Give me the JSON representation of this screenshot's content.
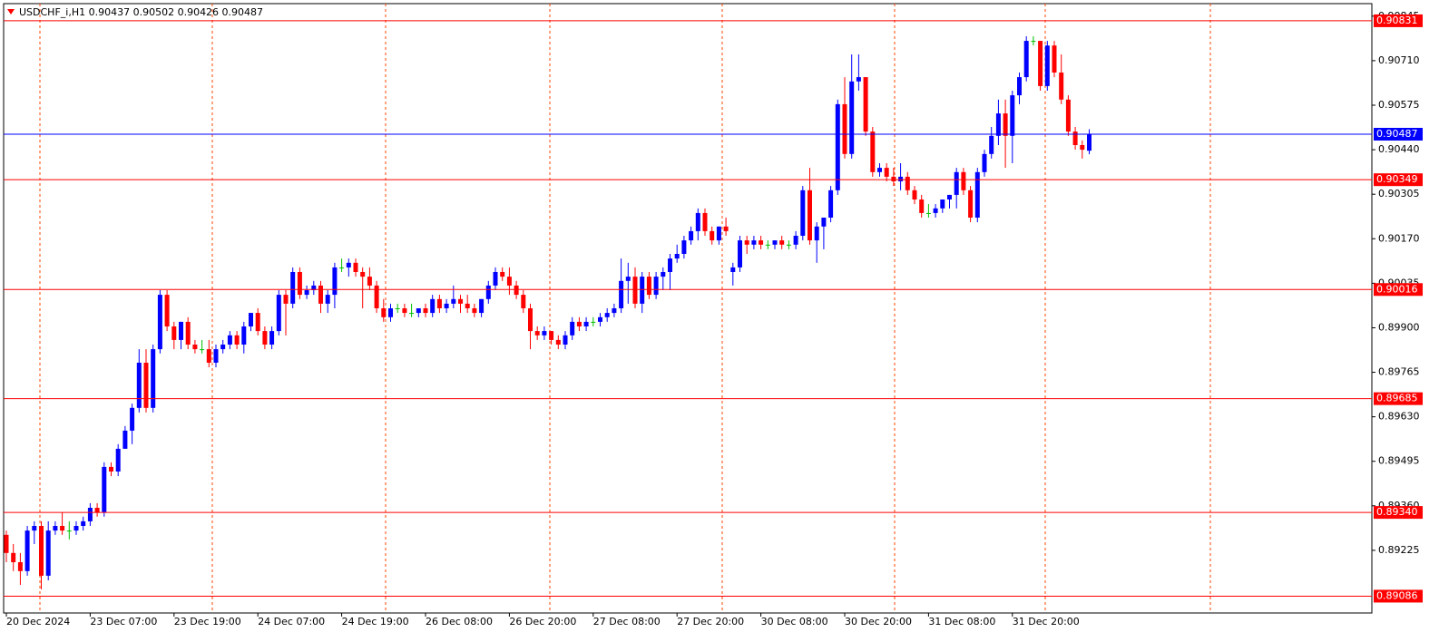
{
  "chart_data": {
    "type": "candlestick",
    "title": "USDCHF_i,H1  0.90437 0.90502 0.90426 0.90487",
    "bull_color": "#0000ff",
    "bear_color": "#ff0000",
    "doji_color": "#00c000",
    "ylim": [
      0.89035,
      0.90883
    ],
    "yticks": [
      0.90845,
      {
        "value": 0.9071,
        "label": "0.90710"
      },
      0.90575,
      {
        "value": 0.9044,
        "label": "0.90440"
      },
      0.90305,
      {
        "value": 0.9017,
        "label": "0.90170"
      },
      0.90035,
      {
        "value": 0.899,
        "label": "0.89900"
      },
      0.89765,
      {
        "value": 0.8963,
        "label": "0.89630"
      },
      0.89495,
      {
        "value": 0.8936,
        "label": "0.89360"
      },
      0.89225
    ],
    "levels": [
      0.90831,
      0.90349,
      0.90016,
      0.89685,
      {
        "value": 0.8934,
        "label": "0.89340"
      },
      0.89086
    ],
    "level_color": "#ff0000",
    "last_price": 0.90487,
    "last_price_color": "#0000ff",
    "categories": [
      "20 Dec 2024",
      null,
      null,
      null,
      null,
      null,
      null,
      null,
      null,
      null,
      null,
      null,
      "23 Dec 07:00",
      null,
      null,
      null,
      null,
      null,
      null,
      null,
      null,
      null,
      null,
      null,
      "23 Dec 19:00",
      null,
      null,
      null,
      null,
      null,
      null,
      null,
      null,
      null,
      null,
      null,
      "24 Dec 07:00",
      null,
      null,
      null,
      null,
      null,
      null,
      null,
      null,
      null,
      null,
      null,
      "24 Dec 19:00",
      null,
      null,
      null,
      null,
      null,
      null,
      null,
      null,
      null,
      null,
      null,
      "26 Dec 08:00",
      null,
      null,
      null,
      null,
      null,
      null,
      null,
      null,
      null,
      null,
      null,
      "26 Dec 20:00",
      null,
      null,
      null,
      null,
      null,
      null,
      null,
      null,
      null,
      null,
      null,
      "27 Dec 08:00",
      null,
      null,
      null,
      null,
      null,
      null,
      null,
      null,
      null,
      null,
      null,
      "27 Dec 20:00",
      null,
      null,
      null,
      null,
      null,
      null,
      null,
      null,
      null,
      null,
      null,
      "30 Dec 08:00",
      null,
      null,
      null,
      null,
      null,
      null,
      null,
      null,
      null,
      null,
      null,
      "30 Dec 20:00",
      null,
      null,
      null,
      null,
      null,
      null,
      null,
      null,
      null,
      null,
      null,
      "31 Dec 08:00",
      null,
      null,
      null,
      null,
      null,
      null,
      null,
      null,
      null,
      null,
      null,
      "31 Dec 20:00",
      null,
      null,
      null,
      null,
      null,
      null,
      null,
      null,
      null,
      null,
      null
    ],
    "candles": [
      [
        0.89272,
        0.89285,
        0.89189,
        0.89217
      ],
      [
        0.89217,
        0.89244,
        0.89162,
        0.89189
      ],
      [
        0.89189,
        0.89217,
        0.8912,
        0.89162
      ],
      [
        0.89162,
        0.89299,
        0.89148,
        0.89285
      ],
      [
        0.89285,
        0.89313,
        0.89244,
        0.89299
      ],
      [
        0.89299,
        0.89313,
        0.89107,
        0.89148
      ],
      [
        0.89148,
        0.89313,
        0.89134,
        0.89285
      ],
      [
        0.89285,
        0.89313,
        0.89272,
        0.89299
      ],
      [
        0.89299,
        0.8934,
        0.89272,
        0.89285
      ],
      [
        0.89285,
        0.89313,
        0.89258,
        0.89285
      ],
      [
        0.89285,
        0.89313,
        0.89272,
        0.89299
      ],
      [
        0.89299,
        0.89327,
        0.89285,
        0.89313
      ],
      [
        0.89313,
        0.89368,
        0.89299,
        0.89354
      ],
      [
        0.89354,
        0.89368,
        0.89327,
        0.8934
      ],
      [
        0.8934,
        0.89492,
        0.89327,
        0.89478
      ],
      [
        0.89478,
        0.89492,
        0.8945,
        0.89464
      ],
      [
        0.89464,
        0.89547,
        0.8945,
        0.89533
      ],
      [
        0.89533,
        0.89602,
        0.89533,
        0.89588
      ],
      [
        0.89588,
        0.8967,
        0.89547,
        0.89657
      ],
      [
        0.89657,
        0.89835,
        0.89643,
        0.89794
      ],
      [
        0.89794,
        0.89835,
        0.89643,
        0.89657
      ],
      [
        0.89657,
        0.89849,
        0.89643,
        0.89835
      ],
      [
        0.89835,
        0.90014,
        0.89822,
        0.9
      ],
      [
        0.9,
        0.90014,
        0.8989,
        0.89904
      ],
      [
        0.89904,
        0.89918,
        0.89835,
        0.89863
      ],
      [
        0.89863,
        0.89918,
        0.89835,
        0.89918
      ],
      [
        0.89918,
        0.89932,
        0.89835,
        0.89849
      ],
      [
        0.89849,
        0.89863,
        0.89822,
        0.89835
      ],
      [
        0.89835,
        0.89863,
        0.89822,
        0.89835
      ],
      [
        0.89835,
        0.89863,
        0.8978,
        0.89794
      ],
      [
        0.89794,
        0.89849,
        0.8978,
        0.89835
      ],
      [
        0.89835,
        0.89863,
        0.89822,
        0.89849
      ],
      [
        0.89849,
        0.8989,
        0.89835,
        0.89877
      ],
      [
        0.89877,
        0.8989,
        0.89835,
        0.89849
      ],
      [
        0.89849,
        0.89918,
        0.89822,
        0.89904
      ],
      [
        0.89904,
        0.89945,
        0.8989,
        0.89945
      ],
      [
        0.89945,
        0.89959,
        0.89877,
        0.8989
      ],
      [
        0.8989,
        0.89904,
        0.89835,
        0.89849
      ],
      [
        0.89849,
        0.89904,
        0.89835,
        0.8989
      ],
      [
        0.8989,
        0.90014,
        0.89877,
        0.9
      ],
      [
        0.9,
        0.90014,
        0.89877,
        0.89973
      ],
      [
        0.89973,
        0.90083,
        0.89959,
        0.90069
      ],
      [
        0.90069,
        0.90083,
        0.89987,
        0.9
      ],
      [
        0.9,
        0.90028,
        0.89987,
        0.90014
      ],
      [
        0.90014,
        0.90042,
        0.9,
        0.90028
      ],
      [
        0.90028,
        0.90042,
        0.89945,
        0.89973
      ],
      [
        0.89973,
        0.90014,
        0.89945,
        0.9
      ],
      [
        0.9,
        0.90097,
        0.89959,
        0.90083
      ],
      [
        0.90083,
        0.9011,
        0.90069,
        0.90083
      ],
      [
        0.90083,
        0.9011,
        0.90055,
        0.90097
      ],
      [
        0.90097,
        0.9011,
        0.90055,
        0.90069
      ],
      [
        0.90069,
        0.90083,
        0.89959,
        0.90055
      ],
      [
        0.90055,
        0.90083,
        0.90014,
        0.90028
      ],
      [
        0.90028,
        0.90042,
        0.89945,
        0.89959
      ],
      [
        0.89959,
        0.89987,
        0.89918,
        0.89932
      ],
      [
        0.89932,
        0.89973,
        0.89918,
        0.89959
      ],
      [
        0.89959,
        0.89973,
        0.89945,
        0.89959
      ],
      [
        0.89959,
        0.89973,
        0.89932,
        0.89945
      ],
      [
        0.89945,
        0.89973,
        0.89932,
        0.89945
      ],
      [
        0.89945,
        0.89959,
        0.89932,
        0.89959
      ],
      [
        0.89959,
        0.89973,
        0.89932,
        0.89945
      ],
      [
        0.89945,
        0.9,
        0.89932,
        0.89987
      ],
      [
        0.89987,
        0.9,
        0.89945,
        0.89959
      ],
      [
        0.89959,
        0.89987,
        0.89945,
        0.89973
      ],
      [
        0.89973,
        0.90028,
        0.89959,
        0.89987
      ],
      [
        0.89987,
        0.9,
        0.89945,
        0.89973
      ],
      [
        0.89973,
        0.9,
        0.89945,
        0.89959
      ],
      [
        0.89959,
        0.89973,
        0.89932,
        0.89945
      ],
      [
        0.89945,
        0.89987,
        0.89932,
        0.89987
      ],
      [
        0.89987,
        0.90042,
        0.89973,
        0.90028
      ],
      [
        0.90028,
        0.90083,
        0.90014,
        0.90069
      ],
      [
        0.90069,
        0.90083,
        0.90042,
        0.90055
      ],
      [
        0.90055,
        0.90083,
        0.9,
        0.90028
      ],
      [
        0.90028,
        0.90042,
        0.89987,
        0.9
      ],
      [
        0.9,
        0.90014,
        0.89945,
        0.89959
      ],
      [
        0.89959,
        0.89973,
        0.89835,
        0.8989
      ],
      [
        0.8989,
        0.89904,
        0.89863,
        0.89877
      ],
      [
        0.89877,
        0.89904,
        0.89863,
        0.8989
      ],
      [
        0.8989,
        0.8989,
        0.89849,
        0.89863
      ],
      [
        0.89863,
        0.89877,
        0.89835,
        0.89849
      ],
      [
        0.89849,
        0.8989,
        0.89835,
        0.89877
      ],
      [
        0.89877,
        0.89932,
        0.89863,
        0.89918
      ],
      [
        0.89918,
        0.89932,
        0.8989,
        0.89904
      ],
      [
        0.89904,
        0.89932,
        0.8989,
        0.89918
      ],
      [
        0.89918,
        0.89932,
        0.89904,
        0.89918
      ],
      [
        0.89918,
        0.89945,
        0.89904,
        0.89932
      ],
      [
        0.89932,
        0.89959,
        0.89918,
        0.89945
      ],
      [
        0.89945,
        0.89973,
        0.89932,
        0.89959
      ],
      [
        0.89959,
        0.9011,
        0.89945,
        0.90042
      ],
      [
        0.90042,
        0.90097,
        0.89973,
        0.90055
      ],
      [
        0.90055,
        0.90083,
        0.89959,
        0.89973
      ],
      [
        0.89973,
        0.90069,
        0.89945,
        0.90055
      ],
      [
        0.90055,
        0.90069,
        0.89987,
        0.9
      ],
      [
        0.9,
        0.90069,
        0.89987,
        0.90055
      ],
      [
        0.90055,
        0.90083,
        0.90014,
        0.90069
      ],
      [
        0.90069,
        0.90124,
        0.90014,
        0.9011
      ],
      [
        0.9011,
        0.90152,
        0.90097,
        0.90124
      ],
      [
        0.90124,
        0.90179,
        0.9011,
        0.90165
      ],
      [
        0.90165,
        0.90207,
        0.90152,
        0.90193
      ],
      [
        0.90193,
        0.90262,
        0.90165,
        0.90248
      ],
      [
        0.90248,
        0.90262,
        0.90179,
        0.90193
      ],
      [
        0.90193,
        0.90207,
        0.90152,
        0.90165
      ],
      [
        0.90165,
        0.90207,
        0.90152,
        0.90207
      ],
      [
        0.90207,
        0.90234,
        0.90179,
        0.90193
      ],
      [
        0.90069,
        0.90097,
        0.90028,
        0.90083
      ],
      [
        0.90083,
        0.90179,
        0.90069,
        0.90165
      ],
      [
        0.90165,
        0.90179,
        0.90124,
        0.90152
      ],
      [
        0.90152,
        0.90179,
        0.90138,
        0.90165
      ],
      [
        0.90165,
        0.90179,
        0.90138,
        0.90152
      ],
      [
        0.90152,
        0.90165,
        0.90138,
        0.90152
      ],
      [
        0.90152,
        0.90165,
        0.90138,
        0.90165
      ],
      [
        0.90165,
        0.90179,
        0.90138,
        0.90152
      ],
      [
        0.90152,
        0.90165,
        0.90138,
        0.90152
      ],
      [
        0.90152,
        0.90193,
        0.90138,
        0.90179
      ],
      [
        0.90179,
        0.9033,
        0.90165,
        0.90317
      ],
      [
        0.90317,
        0.90385,
        0.90152,
        0.90165
      ],
      [
        0.90165,
        0.9022,
        0.90097,
        0.90207
      ],
      [
        0.90207,
        0.90234,
        0.90138,
        0.90234
      ],
      [
        0.90234,
        0.9033,
        0.9022,
        0.90317
      ],
      [
        0.90317,
        0.90592,
        0.90303,
        0.90578
      ],
      [
        0.90578,
        0.9066,
        0.90413,
        0.90427
      ],
      [
        0.90427,
        0.90729,
        0.90413,
        0.90647
      ],
      [
        0.90647,
        0.90729,
        0.90619,
        0.9066
      ],
      [
        0.9066,
        0.9066,
        0.90482,
        0.90495
      ],
      [
        0.90495,
        0.90509,
        0.90358,
        0.90372
      ],
      [
        0.90372,
        0.90399,
        0.90358,
        0.90385
      ],
      [
        0.90385,
        0.90399,
        0.90344,
        0.90358
      ],
      [
        0.90358,
        0.90385,
        0.9033,
        0.90344
      ],
      [
        0.90344,
        0.90399,
        0.90317,
        0.90358
      ],
      [
        0.90358,
        0.90372,
        0.90303,
        0.90317
      ],
      [
        0.90317,
        0.9033,
        0.90275,
        0.90289
      ],
      [
        0.90289,
        0.90303,
        0.90234,
        0.90248
      ],
      [
        0.90248,
        0.90275,
        0.90234,
        0.90248
      ],
      [
        0.90248,
        0.90275,
        0.90234,
        0.90262
      ],
      [
        0.90262,
        0.90289,
        0.90248,
        0.90289
      ],
      [
        0.90289,
        0.90303,
        0.90262,
        0.90303
      ],
      [
        0.90303,
        0.90385,
        0.90262,
        0.90372
      ],
      [
        0.90372,
        0.90385,
        0.90303,
        0.90317
      ],
      [
        0.90317,
        0.9033,
        0.9022,
        0.90234
      ],
      [
        0.90234,
        0.90385,
        0.9022,
        0.90372
      ],
      [
        0.90372,
        0.9044,
        0.90358,
        0.90427
      ],
      [
        0.90427,
        0.90509,
        0.90413,
        0.90482
      ],
      [
        0.90482,
        0.90592,
        0.90454,
        0.9055
      ],
      [
        0.9055,
        0.90592,
        0.90385,
        0.90482
      ],
      [
        0.90482,
        0.90619,
        0.90399,
        0.90605
      ],
      [
        0.90605,
        0.90674,
        0.90578,
        0.9066
      ],
      [
        0.9066,
        0.90784,
        0.90647,
        0.9077
      ],
      [
        0.9077,
        0.90784,
        0.90756,
        0.9077
      ],
      [
        0.9077,
        0.9077,
        0.90619,
        0.90633
      ],
      [
        0.90633,
        0.9077,
        0.90619,
        0.90756
      ],
      [
        0.90756,
        0.9077,
        0.9066,
        0.90674
      ],
      [
        0.90674,
        0.90729,
        0.90578,
        0.90592
      ],
      [
        0.90592,
        0.90605,
        0.90482,
        0.90495
      ],
      [
        0.90495,
        0.90509,
        0.9044,
        0.90454
      ],
      [
        0.90454,
        0.90468,
        0.90413,
        0.9044
      ],
      [
        0.90437,
        0.90502,
        0.90426,
        0.90487
      ]
    ]
  }
}
